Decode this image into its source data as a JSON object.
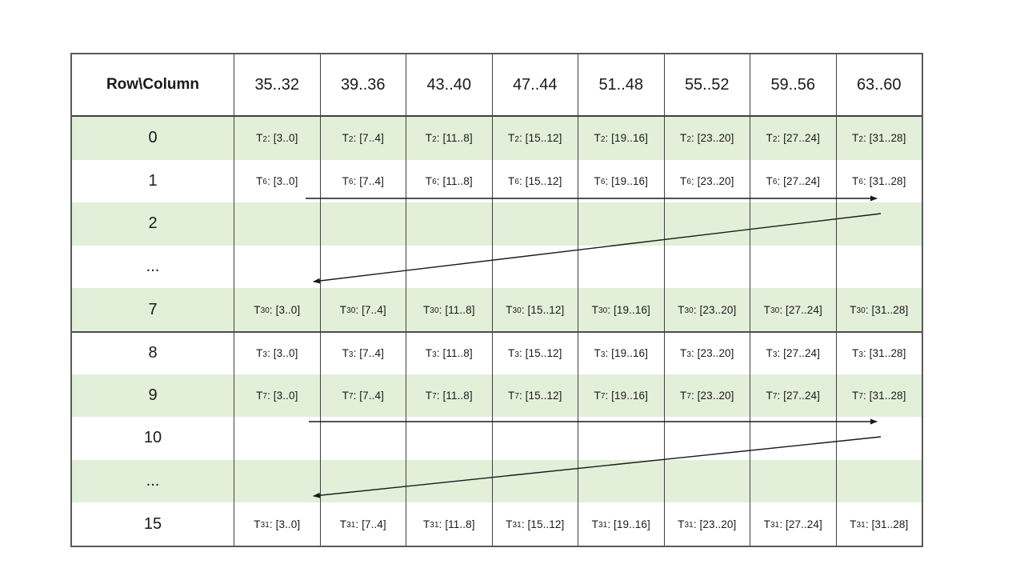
{
  "table": {
    "corner_header": "Row\\Column",
    "column_headers": [
      "35..32",
      "39..36",
      "43..40",
      "47..44",
      "51..48",
      "55..52",
      "59..56",
      "63..60"
    ],
    "register_prefix": "T",
    "bit_ranges": [
      "[3..0]",
      "[7..4]",
      "[11..8]",
      "[15..12]",
      "[19..16]",
      "[23..20]",
      "[27..24]",
      "[31..28]"
    ],
    "rows": [
      {
        "label": "0",
        "filled": true,
        "reg_sub": "2",
        "shaded": true,
        "section_start": false
      },
      {
        "label": "1",
        "filled": true,
        "reg_sub": "6",
        "shaded": false,
        "section_start": false
      },
      {
        "label": "2",
        "filled": false,
        "reg_sub": "",
        "shaded": true,
        "section_start": false
      },
      {
        "label": "...",
        "filled": false,
        "reg_sub": "",
        "shaded": false,
        "section_start": false
      },
      {
        "label": "7",
        "filled": true,
        "reg_sub": "30",
        "shaded": true,
        "section_start": false
      },
      {
        "label": "8",
        "filled": true,
        "reg_sub": "3",
        "shaded": false,
        "section_start": true
      },
      {
        "label": "9",
        "filled": true,
        "reg_sub": "7",
        "shaded": true,
        "section_start": false
      },
      {
        "label": "10",
        "filled": false,
        "reg_sub": "",
        "shaded": false,
        "section_start": false
      },
      {
        "label": "...",
        "filled": false,
        "reg_sub": "",
        "shaded": true,
        "section_start": false
      },
      {
        "label": "15",
        "filled": true,
        "reg_sub": "31",
        "shaded": false,
        "section_start": false
      }
    ]
  },
  "arrows": [
    {
      "name": "row1-traversal-arrow",
      "direction": "right"
    },
    {
      "name": "wrap-arrow-to-row7",
      "direction": "left"
    },
    {
      "name": "row9-traversal-arrow",
      "direction": "right"
    },
    {
      "name": "wrap-arrow-to-row15",
      "direction": "left"
    }
  ],
  "colors": {
    "row_band": "#e2efd9",
    "grid_line": "#404040",
    "outer_border": "#595959",
    "arrow": "#1a1a1a",
    "text": "#1a1a1a"
  }
}
